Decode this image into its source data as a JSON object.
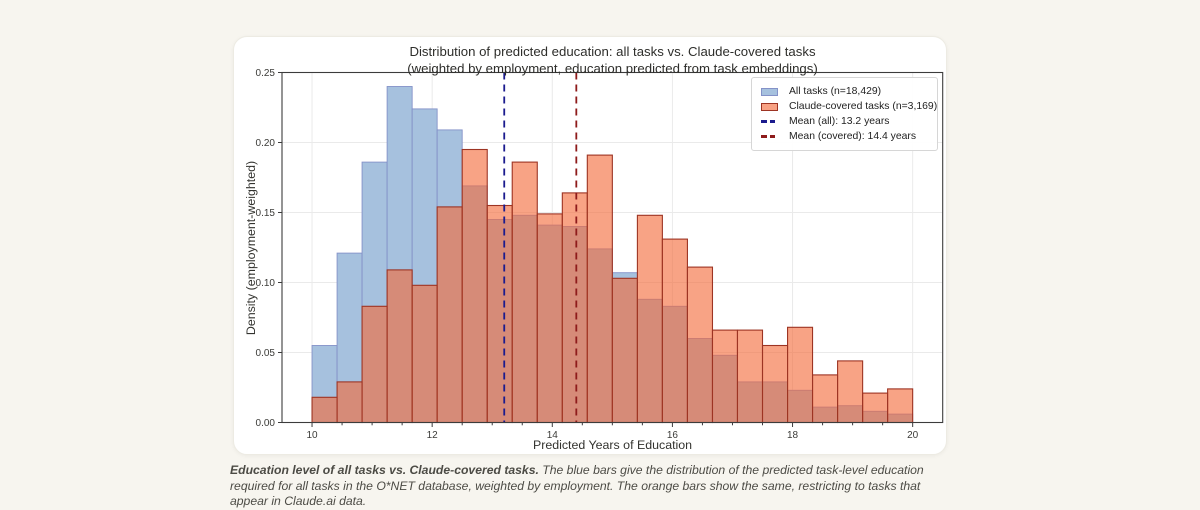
{
  "page": {
    "background": "#f7f5ef",
    "card_background": "#ffffff"
  },
  "chart_data": {
    "type": "bar",
    "subtype": "overlaid-histogram",
    "title_line1": "Distribution of predicted education: all tasks vs. Claude-covered tasks",
    "title_line2": "(weighted by employment, education predicted from task embeddings)",
    "xlabel": "Predicted Years of Education",
    "ylabel": "Density (employment-weighted)",
    "xlim": [
      9.5,
      20.5
    ],
    "ylim": [
      0,
      0.25
    ],
    "grid": true,
    "x_major_ticks": [
      10,
      12,
      14,
      16,
      18,
      20
    ],
    "x_major_tick_labels": [
      "10",
      "12",
      "14",
      "16",
      "18",
      "20"
    ],
    "x_minor_tick_step": 0.5,
    "y_ticks": [
      0.0,
      0.05,
      0.1,
      0.15,
      0.2,
      0.25
    ],
    "y_tick_labels": [
      "0.00",
      "0.05",
      "0.10",
      "0.15",
      "0.20",
      "0.25"
    ],
    "bin_edges": [
      10.0,
      10.417,
      10.833,
      11.25,
      11.667,
      12.083,
      12.5,
      12.917,
      13.333,
      13.75,
      14.167,
      14.583,
      15.0,
      15.417,
      15.833,
      16.25,
      16.667,
      17.083,
      17.5,
      17.917,
      18.333,
      18.75,
      19.167,
      19.583,
      20.0
    ],
    "series": [
      {
        "name": "All tasks (n=18,429)",
        "fill": "#a6c1de",
        "edge": "#8492c8",
        "values": [
          0.055,
          0.121,
          0.186,
          0.24,
          0.224,
          0.209,
          0.169,
          0.145,
          0.148,
          0.141,
          0.14,
          0.124,
          0.107,
          0.088,
          0.083,
          0.06,
          0.048,
          0.029,
          0.029,
          0.023,
          0.011,
          0.012,
          0.008,
          0.006
        ]
      },
      {
        "name": "Claude-covered tasks (n=3,169)",
        "fill": "rgba(244,106,58,0.62)",
        "edge": "#9d3423",
        "legend_fill": "#f8a284",
        "values": [
          0.018,
          0.029,
          0.083,
          0.109,
          0.098,
          0.154,
          0.195,
          0.155,
          0.186,
          0.149,
          0.164,
          0.191,
          0.103,
          0.148,
          0.131,
          0.111,
          0.066,
          0.066,
          0.055,
          0.068,
          0.034,
          0.044,
          0.021,
          0.024
        ]
      }
    ],
    "mean_lines": [
      {
        "label": "Mean (all): 13.2 years",
        "x": 13.2,
        "color": "#1b1b8e"
      },
      {
        "label": "Mean (covered): 14.4 years",
        "x": 14.4,
        "color": "#8e1b1b"
      }
    ],
    "legend_position": "top-right",
    "spine_color": "#3c3c3c",
    "grid_color": "#eaeaea",
    "tick_label_color": "#3b3b38"
  },
  "caption": {
    "bold": "Education level of all tasks vs. Claude-covered tasks.",
    "text": " The blue bars give the distribution of the predicted task-level education required for all tasks in the O*NET database, weighted by employment. The orange bars show the same, restricting to tasks that appear in Claude.ai data."
  }
}
